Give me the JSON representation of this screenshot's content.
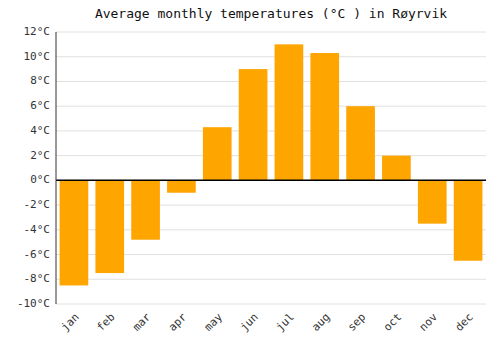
{
  "chart_data": {
    "type": "bar",
    "title": "Average monthly temperatures (°C ) in Røyrvik",
    "categories": [
      "jan",
      "feb",
      "mar",
      "apr",
      "may",
      "jun",
      "jul",
      "aug",
      "sep",
      "oct",
      "nov",
      "dec"
    ],
    "values": [
      -8.5,
      -7.5,
      -4.8,
      -1.0,
      4.3,
      9.0,
      11.0,
      10.3,
      6.0,
      2.0,
      -3.5,
      -6.5
    ],
    "color": "#FFA500",
    "ylim": [
      -10,
      12
    ],
    "yticks": [
      {
        "value": -10,
        "label": "-10°C"
      },
      {
        "value": -8,
        "label": "-8°C"
      },
      {
        "value": -6,
        "label": "-6°C"
      },
      {
        "value": -4,
        "label": "-4°C"
      },
      {
        "value": -2,
        "label": "-2°C"
      },
      {
        "value": 0,
        "label": "0°C"
      },
      {
        "value": 2,
        "label": "2°C"
      },
      {
        "value": 4,
        "label": "4°C"
      },
      {
        "value": 6,
        "label": "6°C"
      },
      {
        "value": 8,
        "label": "8°C"
      },
      {
        "value": 10,
        "label": "10°C"
      },
      {
        "value": 12,
        "label": "12°C"
      }
    ],
    "grid": true
  }
}
